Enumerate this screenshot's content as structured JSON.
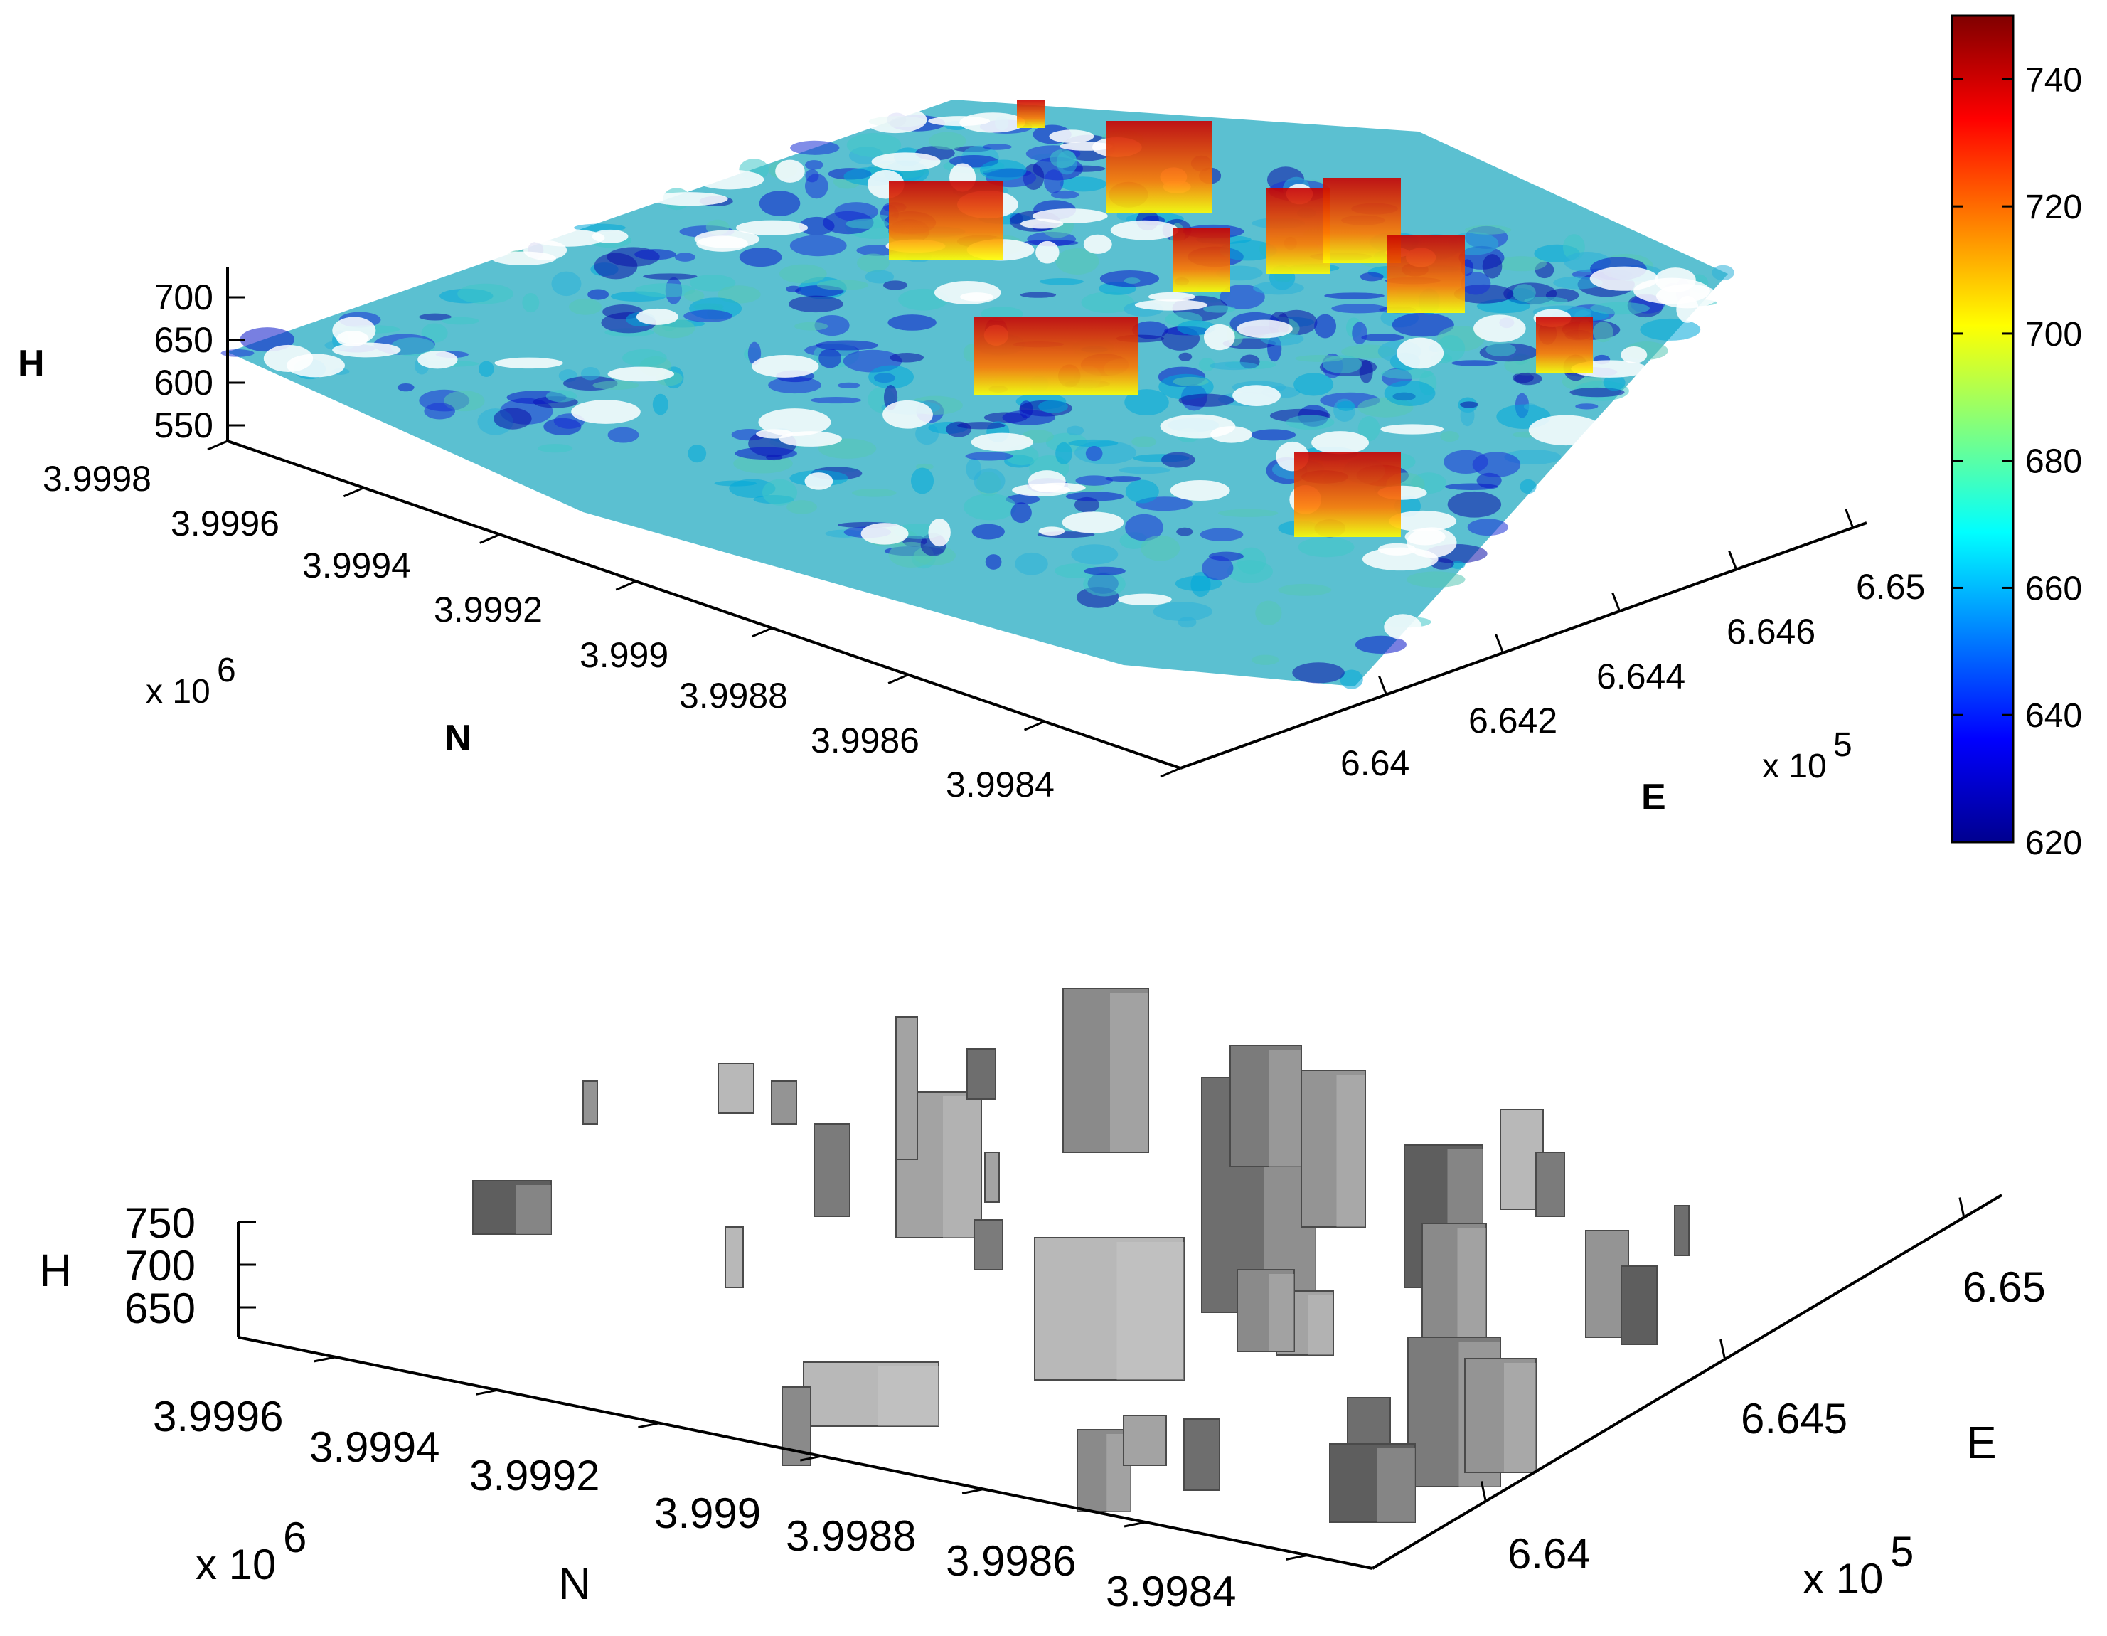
{
  "chart_data": [
    {
      "type": "scatter",
      "subtype": "3d-point-cloud",
      "title": "",
      "xlabel": "E",
      "ylabel": "N",
      "zlabel": "H",
      "x_ticks": [
        "6.64",
        "6.642",
        "6.644",
        "6.646",
        "6.65"
      ],
      "x_exponent": "x 10",
      "x_exponent_power": "5",
      "y_ticks": [
        "3.9998",
        "3.9996",
        "3.9994",
        "3.9992",
        "3.999",
        "3.9988",
        "3.9986",
        "3.9984"
      ],
      "y_exponent": "x 10",
      "y_exponent_power": "6",
      "z_ticks": [
        "700",
        "650",
        "600",
        "550"
      ],
      "colorbar": {
        "colormap": "jet",
        "ticks": [
          "740",
          "720",
          "700",
          "680",
          "660",
          "640",
          "620"
        ],
        "range": [
          620,
          750
        ]
      },
      "grid": false
    },
    {
      "type": "3d-blocks",
      "title": "",
      "xlabel": "E",
      "ylabel": "N",
      "zlabel": "H",
      "x_ticks": [
        "6.65",
        "6.645",
        "6.64"
      ],
      "x_exponent": "x 10",
      "x_exponent_power": "5",
      "y_ticks": [
        "3.9996",
        "3.9994",
        "3.9992",
        "3.999",
        "3.9988",
        "3.9986",
        "3.9984"
      ],
      "y_exponent": "x 10",
      "y_exponent_power": "6",
      "z_ticks": [
        "750",
        "700",
        "650"
      ],
      "fill_color": "#8c8c8c",
      "grid": false
    }
  ]
}
